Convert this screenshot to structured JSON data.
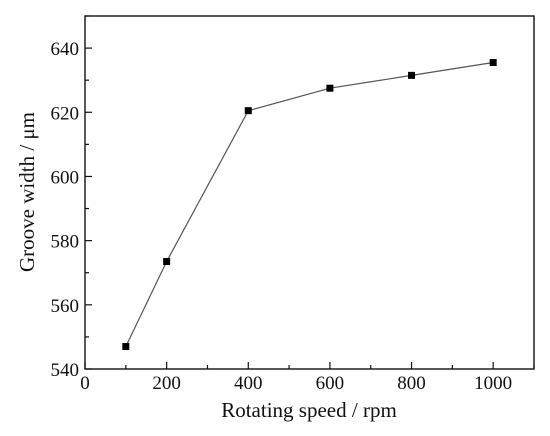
{
  "chart_data": {
    "type": "line",
    "title": "",
    "xlabel": "Rotating speed / rpm",
    "ylabel": "Groove width / μm",
    "xlim": [
      0,
      1100
    ],
    "ylim": [
      540,
      650
    ],
    "x_ticks": [
      0,
      200,
      400,
      600,
      800,
      1000
    ],
    "y_ticks": [
      540,
      560,
      580,
      600,
      620,
      640
    ],
    "grid": false,
    "legend": "none",
    "marker": "square",
    "line_color": "#555555",
    "marker_color": "#000000",
    "series": [
      {
        "x": [
          100,
          200,
          400,
          600,
          800,
          1000
        ],
        "y": [
          547,
          573.5,
          620.5,
          627.5,
          631.5,
          635.5
        ]
      }
    ]
  }
}
